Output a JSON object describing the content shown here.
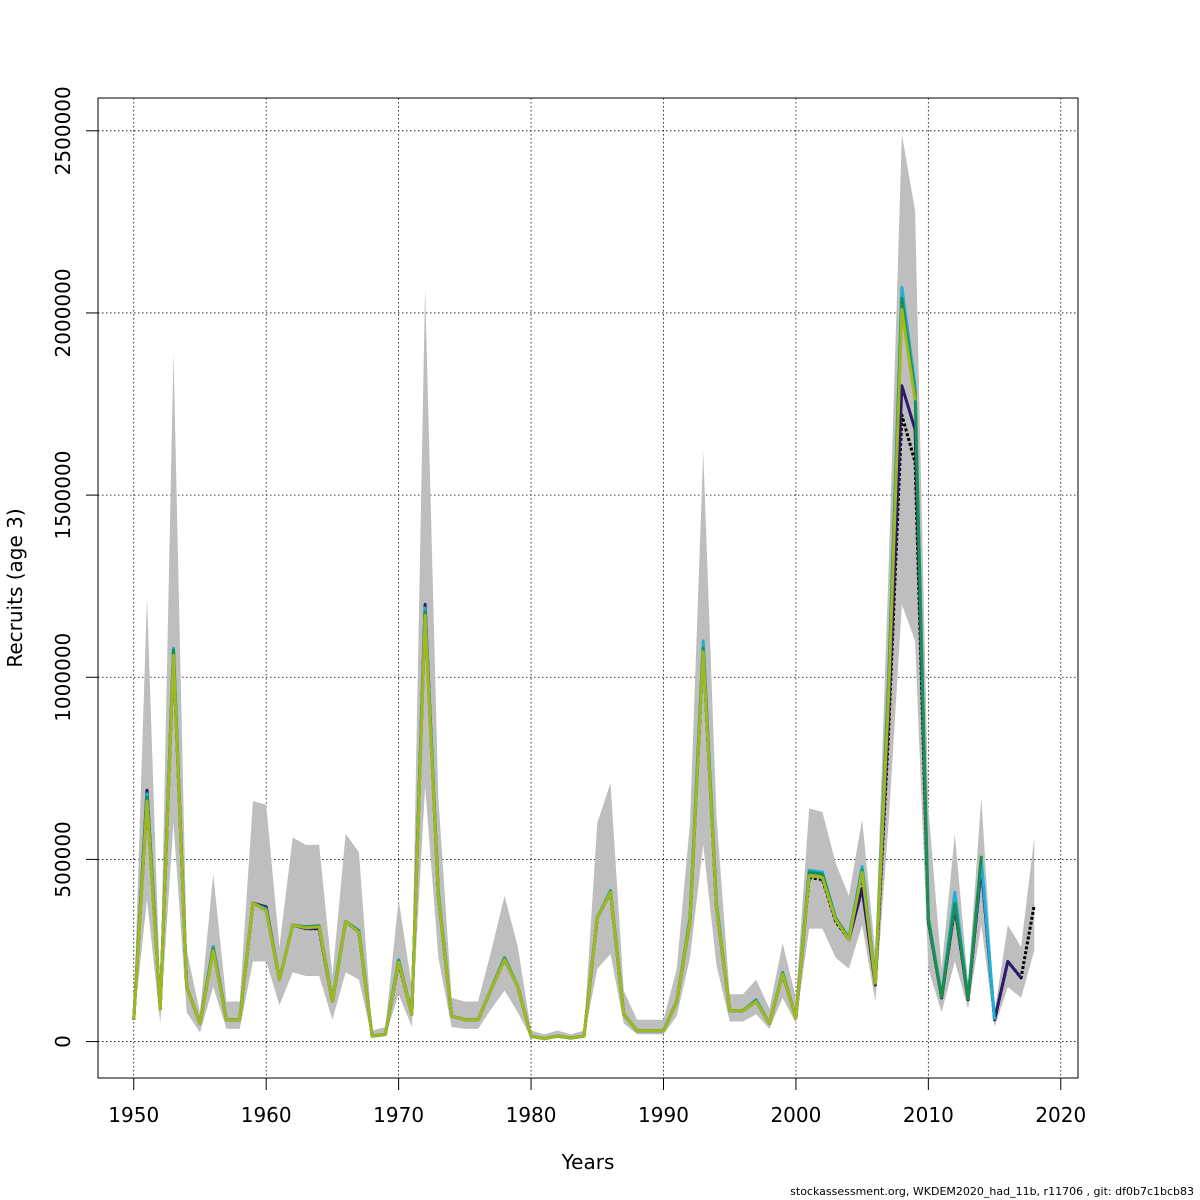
{
  "footer": "stockassessment.org, WKDEM2020_had_11b, r11706 , git: df0b7c1bcb83",
  "chart_data": {
    "type": "line",
    "xlabel": "Years",
    "ylabel": "Recruits (age 3)",
    "xlim": [
      1947.3,
      2021.3
    ],
    "ylim": [
      -100000,
      2590000
    ],
    "x_ticks": [
      1950,
      1960,
      1970,
      1980,
      1990,
      2000,
      2010,
      2020
    ],
    "y_ticks": [
      0,
      500000,
      1000000,
      1500000,
      2000000,
      2500000
    ],
    "grid": true,
    "band_color": "#bebebe",
    "years": [
      1950,
      1951,
      1952,
      1953,
      1954,
      1955,
      1956,
      1957,
      1958,
      1959,
      1960,
      1961,
      1962,
      1963,
      1964,
      1965,
      1966,
      1967,
      1968,
      1969,
      1970,
      1971,
      1972,
      1973,
      1974,
      1975,
      1976,
      1977,
      1978,
      1979,
      1980,
      1981,
      1982,
      1983,
      1984,
      1985,
      1986,
      1987,
      1988,
      1989,
      1990,
      1991,
      1992,
      1993,
      1994,
      1995,
      1996,
      1997,
      1998,
      1999,
      2000,
      2001,
      2002,
      2003,
      2004,
      2005,
      2006,
      2007,
      2008,
      2009,
      2010,
      2011,
      2012,
      2013,
      2014,
      2015,
      2016,
      2017,
      2018
    ],
    "band_upper": [
      80000,
      1220000,
      130000,
      1890000,
      250000,
      80000,
      460000,
      110000,
      110000,
      660000,
      650000,
      260000,
      560000,
      540000,
      540000,
      180000,
      570000,
      520000,
      30000,
      40000,
      390000,
      150000,
      2070000,
      670000,
      120000,
      110000,
      110000,
      250000,
      400000,
      260000,
      30000,
      20000,
      30000,
      20000,
      30000,
      600000,
      710000,
      140000,
      60000,
      60000,
      60000,
      200000,
      600000,
      1620000,
      620000,
      130000,
      130000,
      170000,
      90000,
      270000,
      120000,
      640000,
      630000,
      490000,
      400000,
      610000,
      240000,
      1300000,
      2490000,
      2280000,
      640000,
      200000,
      570000,
      160000,
      670000,
      80000,
      320000,
      260000,
      560000
    ],
    "band_lower": [
      50000,
      390000,
      50000,
      600000,
      80000,
      25000,
      150000,
      35000,
      35000,
      220000,
      220000,
      100000,
      190000,
      180000,
      180000,
      60000,
      190000,
      170000,
      10000,
      15000,
      130000,
      40000,
      700000,
      230000,
      40000,
      35000,
      35000,
      90000,
      140000,
      80000,
      10000,
      5000,
      10000,
      5000,
      10000,
      200000,
      240000,
      50000,
      20000,
      20000,
      20000,
      70000,
      230000,
      540000,
      210000,
      55000,
      55000,
      75000,
      35000,
      120000,
      50000,
      310000,
      310000,
      230000,
      200000,
      320000,
      110000,
      600000,
      1200000,
      1100000,
      200000,
      80000,
      220000,
      90000,
      320000,
      40000,
      150000,
      120000,
      250000
    ],
    "series": [
      {
        "color": "#000000",
        "values": [
          60000,
          660000,
          90000,
          1060000,
          150000,
          50000,
          250000,
          60000,
          60000,
          380000,
          360000,
          170000,
          320000,
          310000,
          310000,
          110000,
          330000,
          300000,
          15000,
          20000,
          215000,
          75000,
          1180000,
          400000,
          70000,
          60000,
          60000,
          145000,
          225000,
          150000,
          15000,
          8000,
          15000,
          10000,
          15000,
          340000,
          410000,
          75000,
          30000,
          30000,
          30000,
          110000,
          330000,
          1070000,
          370000,
          85000,
          85000,
          110000,
          50000,
          185000,
          65000,
          450000,
          445000,
          330000,
          280000,
          460000,
          160000,
          850000,
          1720000,
          1590000,
          330000,
          120000,
          370000,
          115000,
          480000,
          60000,
          220000,
          175000,
          375000
        ]
      },
      {
        "color": "#2c1a6e",
        "values": [
          60000,
          690000,
          90000,
          1070000,
          150000,
          50000,
          260000,
          60000,
          60000,
          380000,
          370000,
          170000,
          320000,
          310000,
          310000,
          110000,
          330000,
          300000,
          15000,
          20000,
          220000,
          75000,
          1200000,
          400000,
          70000,
          60000,
          60000,
          145000,
          230000,
          150000,
          15000,
          8000,
          15000,
          10000,
          15000,
          340000,
          410000,
          75000,
          30000,
          30000,
          30000,
          110000,
          330000,
          1080000,
          370000,
          85000,
          85000,
          110000,
          50000,
          185000,
          65000,
          455000,
          450000,
          335000,
          280000,
          420000,
          155000,
          900000,
          1800000,
          1680000,
          330000,
          120000,
          370000,
          115000,
          480000,
          60000,
          220000,
          175000,
          null
        ]
      },
      {
        "color": "#1fb0d8",
        "values": [
          60000,
          680000,
          90000,
          1080000,
          150000,
          50000,
          260000,
          60000,
          60000,
          380000,
          365000,
          170000,
          320000,
          315000,
          315000,
          115000,
          330000,
          305000,
          15000,
          20000,
          225000,
          75000,
          1190000,
          410000,
          70000,
          60000,
          60000,
          145000,
          230000,
          150000,
          15000,
          8000,
          15000,
          10000,
          15000,
          340000,
          415000,
          75000,
          30000,
          30000,
          30000,
          110000,
          340000,
          1100000,
          380000,
          85000,
          85000,
          115000,
          50000,
          190000,
          65000,
          470000,
          465000,
          340000,
          285000,
          480000,
          165000,
          1000000,
          2070000,
          1800000,
          340000,
          125000,
          410000,
          120000,
          500000,
          60000,
          null,
          null,
          null
        ]
      },
      {
        "color": "#1b8f4e",
        "values": [
          60000,
          670000,
          90000,
          1075000,
          150000,
          50000,
          255000,
          60000,
          60000,
          380000,
          362000,
          170000,
          320000,
          315000,
          318000,
          112000,
          330000,
          303000,
          15000,
          20000,
          222000,
          75000,
          1180000,
          405000,
          70000,
          60000,
          60000,
          145000,
          228000,
          150000,
          15000,
          8000,
          15000,
          10000,
          15000,
          340000,
          412000,
          75000,
          30000,
          30000,
          30000,
          110000,
          335000,
          1080000,
          375000,
          85000,
          85000,
          112000,
          50000,
          188000,
          65000,
          465000,
          460000,
          338000,
          283000,
          470000,
          162000,
          980000,
          2040000,
          1780000,
          335000,
          122000,
          380000,
          118000,
          510000,
          null,
          null,
          null,
          null
        ]
      },
      {
        "color": "#9fb81f",
        "values": [
          60000,
          660000,
          90000,
          1060000,
          150000,
          50000,
          250000,
          60000,
          60000,
          380000,
          360000,
          170000,
          320000,
          312000,
          315000,
          110000,
          330000,
          300000,
          15000,
          20000,
          218000,
          75000,
          1170000,
          400000,
          70000,
          60000,
          60000,
          145000,
          225000,
          150000,
          15000,
          8000,
          15000,
          10000,
          15000,
          340000,
          410000,
          75000,
          30000,
          30000,
          30000,
          110000,
          330000,
          1070000,
          370000,
          85000,
          85000,
          110000,
          50000,
          185000,
          65000,
          455000,
          450000,
          335000,
          280000,
          465000,
          160000,
          950000,
          2010000,
          1760000,
          null,
          null,
          null,
          null,
          null,
          null,
          null,
          null,
          null
        ]
      }
    ]
  }
}
